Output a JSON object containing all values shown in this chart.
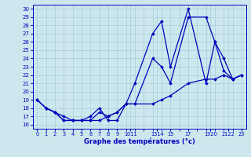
{
  "xlabel": "Graphe des températures (°c)",
  "bg_color": "#cce8ee",
  "grid_color": "#aaccdd",
  "line_color": "#0000bb",
  "ylim": [
    15.5,
    30.5
  ],
  "xlim": [
    -0.5,
    23.5
  ],
  "ytick_vals": [
    16,
    17,
    18,
    19,
    20,
    21,
    22,
    23,
    24,
    25,
    26,
    27,
    28,
    29,
    30
  ],
  "xtick_positions": [
    0,
    1,
    2,
    3,
    4,
    5,
    6,
    7,
    8,
    9,
    10.5,
    13.5,
    15,
    17,
    19.5,
    21.5,
    23
  ],
  "xtick_labels": [
    "0",
    "1",
    "2",
    "3",
    "4",
    "5",
    "6",
    "7",
    "8",
    "9",
    "1011",
    "1314",
    "15",
    "17",
    "1920",
    "2122",
    "23"
  ],
  "series": [
    {
      "x": [
        0,
        1,
        2,
        3,
        4,
        5,
        6,
        7,
        8,
        9,
        10,
        11,
        13,
        14,
        15,
        17,
        19,
        20,
        21,
        22,
        23
      ],
      "y": [
        19,
        18,
        17.5,
        16.5,
        16.5,
        16.5,
        17,
        18,
        16.5,
        16.5,
        18.5,
        21,
        27,
        28.5,
        23,
        30,
        21,
        26,
        24,
        21.5,
        22
      ]
    },
    {
      "x": [
        0,
        1,
        2,
        3,
        4,
        5,
        6,
        7,
        8,
        9,
        10,
        11,
        13,
        14,
        15,
        17,
        19,
        20,
        21,
        22,
        23
      ],
      "y": [
        19,
        18,
        17.5,
        16.5,
        16.5,
        16.5,
        16.5,
        17.5,
        17,
        17.5,
        18.5,
        18.5,
        24,
        23,
        21,
        29,
        29,
        26,
        22.5,
        21.5,
        22
      ]
    },
    {
      "x": [
        0,
        1,
        2,
        3,
        4,
        5,
        6,
        7,
        8,
        9,
        10,
        11,
        13,
        14,
        15,
        17,
        19,
        20,
        21,
        22,
        23
      ],
      "y": [
        19,
        18,
        17.5,
        17,
        16.5,
        16.5,
        16.5,
        16.5,
        17,
        17.5,
        18.5,
        18.5,
        18.5,
        19,
        19.5,
        21,
        21.5,
        21.5,
        22,
        21.5,
        22
      ]
    }
  ]
}
